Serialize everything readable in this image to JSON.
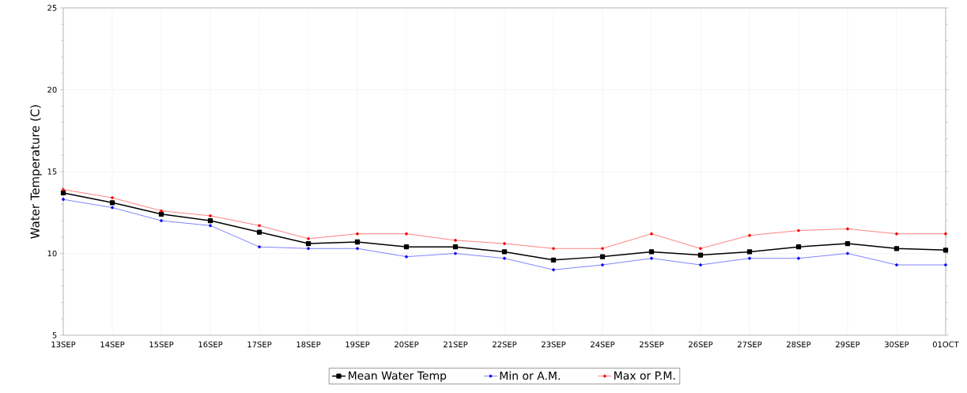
{
  "chart_data": {
    "type": "line",
    "ylabel": "Water Temperature (C)",
    "categories": [
      "13SEP",
      "14SEP",
      "15SEP",
      "16SEP",
      "17SEP",
      "18SEP",
      "19SEP",
      "20SEP",
      "21SEP",
      "22SEP",
      "23SEP",
      "24SEP",
      "25SEP",
      "26SEP",
      "27SEP",
      "28SEP",
      "29SEP",
      "30SEP",
      "01OCT"
    ],
    "series": [
      {
        "name": "Mean Water Temp",
        "color": "#000000",
        "marker": "square",
        "values": [
          13.7,
          13.1,
          12.4,
          12.0,
          11.3,
          10.6,
          10.7,
          10.4,
          10.4,
          10.1,
          9.6,
          9.8,
          10.1,
          9.9,
          10.1,
          10.4,
          10.6,
          10.3,
          10.2
        ]
      },
      {
        "name": "Min or A.M.",
        "color": "#0000ff",
        "values": [
          13.3,
          12.8,
          12.0,
          11.7,
          10.4,
          10.3,
          10.3,
          9.8,
          10.0,
          9.7,
          9.0,
          9.3,
          9.7,
          9.3,
          9.7,
          9.7,
          10.0,
          9.3,
          9.3
        ]
      },
      {
        "name": "Max or P.M.",
        "color": "#ff0000",
        "values": [
          13.9,
          13.4,
          12.6,
          12.3,
          11.7,
          10.9,
          11.2,
          11.2,
          10.8,
          10.6,
          10.3,
          10.3,
          11.2,
          10.3,
          11.1,
          11.4,
          11.5,
          11.2,
          11.2
        ]
      }
    ],
    "ylim": [
      5,
      25
    ],
    "yticks": [
      5,
      10,
      15,
      20,
      25
    ],
    "grid": true,
    "legend": "bottom",
    "marker": "circle",
    "line_style": "solid"
  }
}
